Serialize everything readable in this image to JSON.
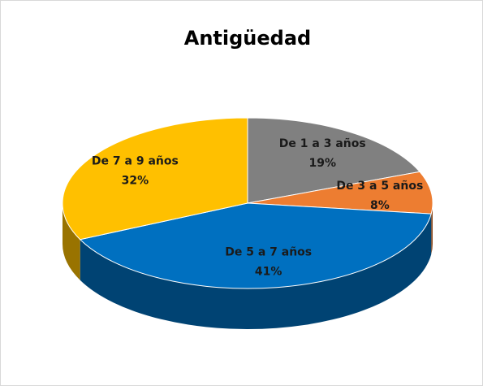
{
  "chart_data": {
    "type": "pie",
    "title": "Antigüedad",
    "categories": [
      "De 1 a 3 años",
      "De 3 a 5 años",
      "De 5 a 7 años",
      "De 7 a 9 años"
    ],
    "values": [
      19,
      8,
      41,
      32
    ],
    "value_labels": [
      "19%",
      "8%",
      "41%",
      "32%"
    ],
    "colors": [
      "#808080",
      "#ED7D31",
      "#0070C0",
      "#FFC000"
    ]
  }
}
